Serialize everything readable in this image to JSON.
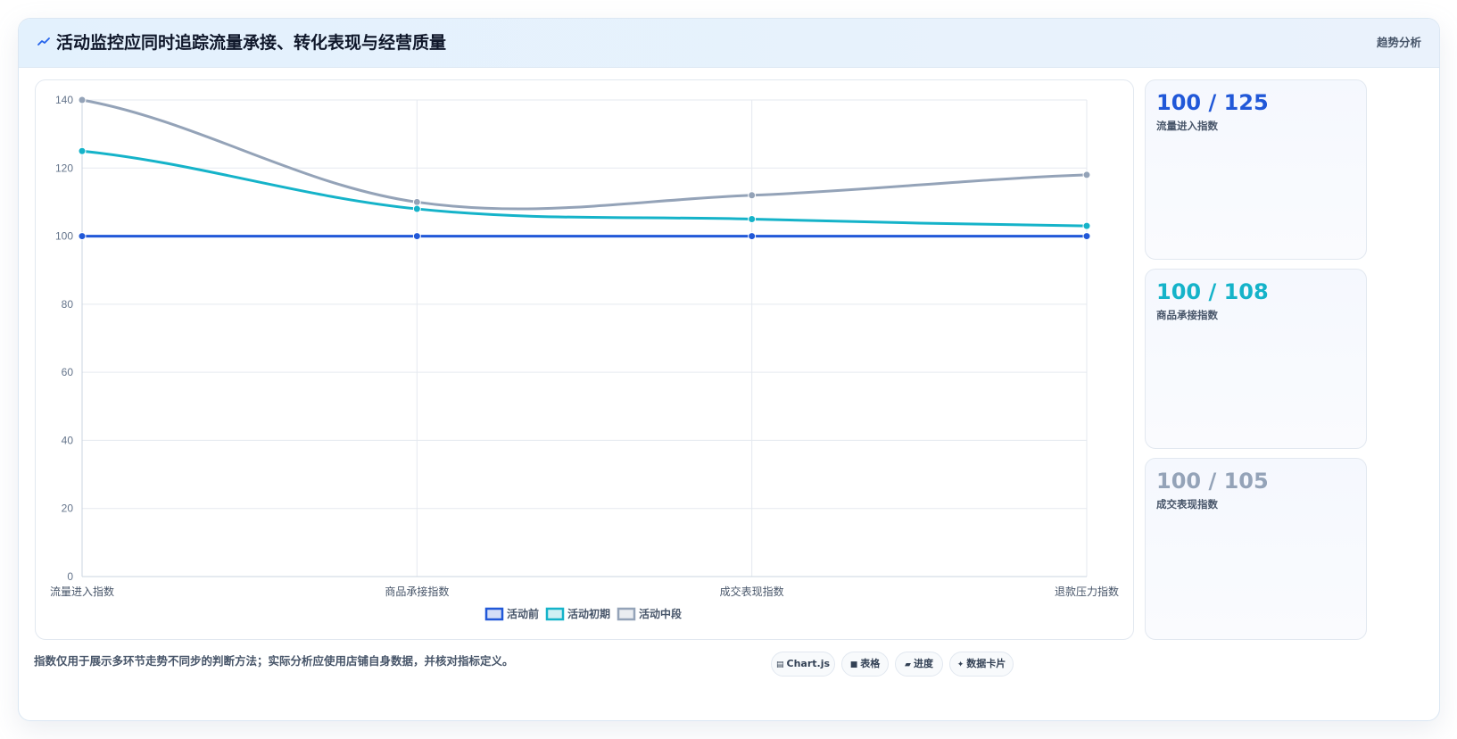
{
  "header": {
    "icon": "trend-line-icon",
    "title": "活动监控应同时追踪流量承接、转化表现与经营质量",
    "tag": "趋势分析"
  },
  "chart_data": {
    "type": "line",
    "categories": [
      "流量进入指数",
      "商品承接指数",
      "成交表现指数",
      "退款压力指数"
    ],
    "series": [
      {
        "name": "活动前",
        "values": [
          100,
          100,
          100,
          100
        ],
        "color": "#2158d8"
      },
      {
        "name": "活动初期",
        "values": [
          125,
          108,
          105,
          103
        ],
        "color": "#15b3c9"
      },
      {
        "name": "活动中段",
        "values": [
          140,
          110,
          112,
          118
        ],
        "color": "#94a3b8"
      }
    ],
    "ylim": [
      0,
      140
    ],
    "yticks": [
      0,
      20,
      40,
      60,
      80,
      100,
      120,
      140
    ],
    "grid": true,
    "legend": "bottom",
    "title": "",
    "xlabel": "",
    "ylabel": ""
  },
  "stats": [
    {
      "value": "100 / 125",
      "label": "流量进入指数",
      "color": "#2158d8"
    },
    {
      "value": "100 / 108",
      "label": "商品承接指数",
      "color": "#15b3c9"
    },
    {
      "value": "100 / 105",
      "label": "成交表现指数",
      "color": "#94a3b8"
    }
  ],
  "footer": {
    "note": "指数仅用于展示多环节走势不同步的判断方法；实际分析应使用店铺自身数据，并核对指标定义。",
    "chips": [
      {
        "icon": "table-grid-icon",
        "glyph": "▤",
        "label": "Chart.js"
      },
      {
        "icon": "square-icon",
        "glyph": "■",
        "label": "表格"
      },
      {
        "icon": "bar-icon",
        "glyph": "▰",
        "label": "进度"
      },
      {
        "icon": "sparkle-icon",
        "glyph": "✦",
        "label": "数据卡片"
      }
    ]
  }
}
